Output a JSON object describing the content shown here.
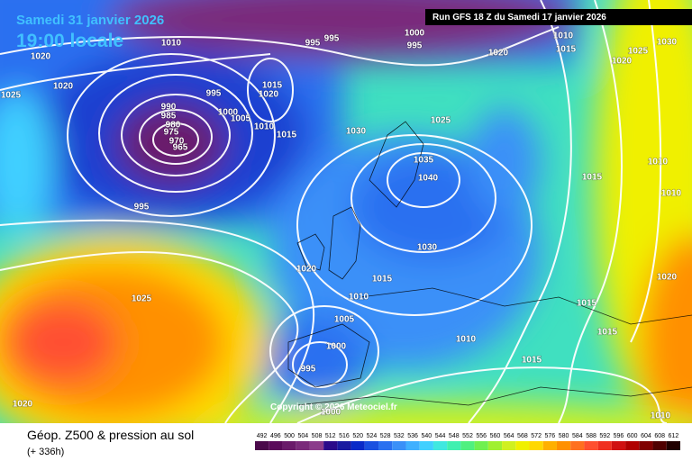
{
  "header": {
    "date": "Samedi 31 janvier 2026",
    "time": "19:00 locale",
    "run": "Run GFS 18 Z du Samedi 17 janvier 2026"
  },
  "copyright": "Copyright © 2026 Meteociel.fr",
  "footer": {
    "title": "Géop. Z500 & pression au sol",
    "lead": "(+ 336h)"
  },
  "isobar_labels": [
    1020,
    1010,
    995,
    995,
    1000,
    995,
    1010,
    1015,
    1030,
    1020,
    1025,
    1020,
    1020,
    1025,
    995,
    1015,
    1020,
    1000,
    1005,
    1010,
    1015,
    990,
    985,
    980,
    975,
    970,
    965,
    1030,
    1025,
    1035,
    1040,
    1015,
    1010,
    1010,
    995,
    1030,
    1020,
    1015,
    1020,
    1025,
    1010,
    1015,
    1005,
    1015,
    1000,
    1010,
    1015,
    995,
    1020,
    1000,
    1010
  ],
  "legend": {
    "values": [
      492,
      496,
      500,
      504,
      508,
      512,
      516,
      520,
      524,
      528,
      532,
      536,
      540,
      544,
      548,
      552,
      556,
      560,
      564,
      568,
      572,
      576,
      580,
      584,
      588,
      592,
      596,
      600,
      604,
      608,
      612
    ],
    "colors": [
      "#4b0a4b",
      "#5a0a5a",
      "#6a1a6a",
      "#7a2a7a",
      "#8b3b8b",
      "#2b0a8a",
      "#1a1aa0",
      "#0a2ac8",
      "#1a50e0",
      "#2a70f0",
      "#3a90f8",
      "#40b0ff",
      "#40d0ff",
      "#40e8e0",
      "#40f0b0",
      "#50f080",
      "#70f050",
      "#a0f030",
      "#d0f020",
      "#f0f000",
      "#ffd800",
      "#ffb000",
      "#ff9000",
      "#ff7020",
      "#ff5030",
      "#f03020",
      "#d01010",
      "#b00000",
      "#800000",
      "#500000",
      "#200000"
    ]
  }
}
